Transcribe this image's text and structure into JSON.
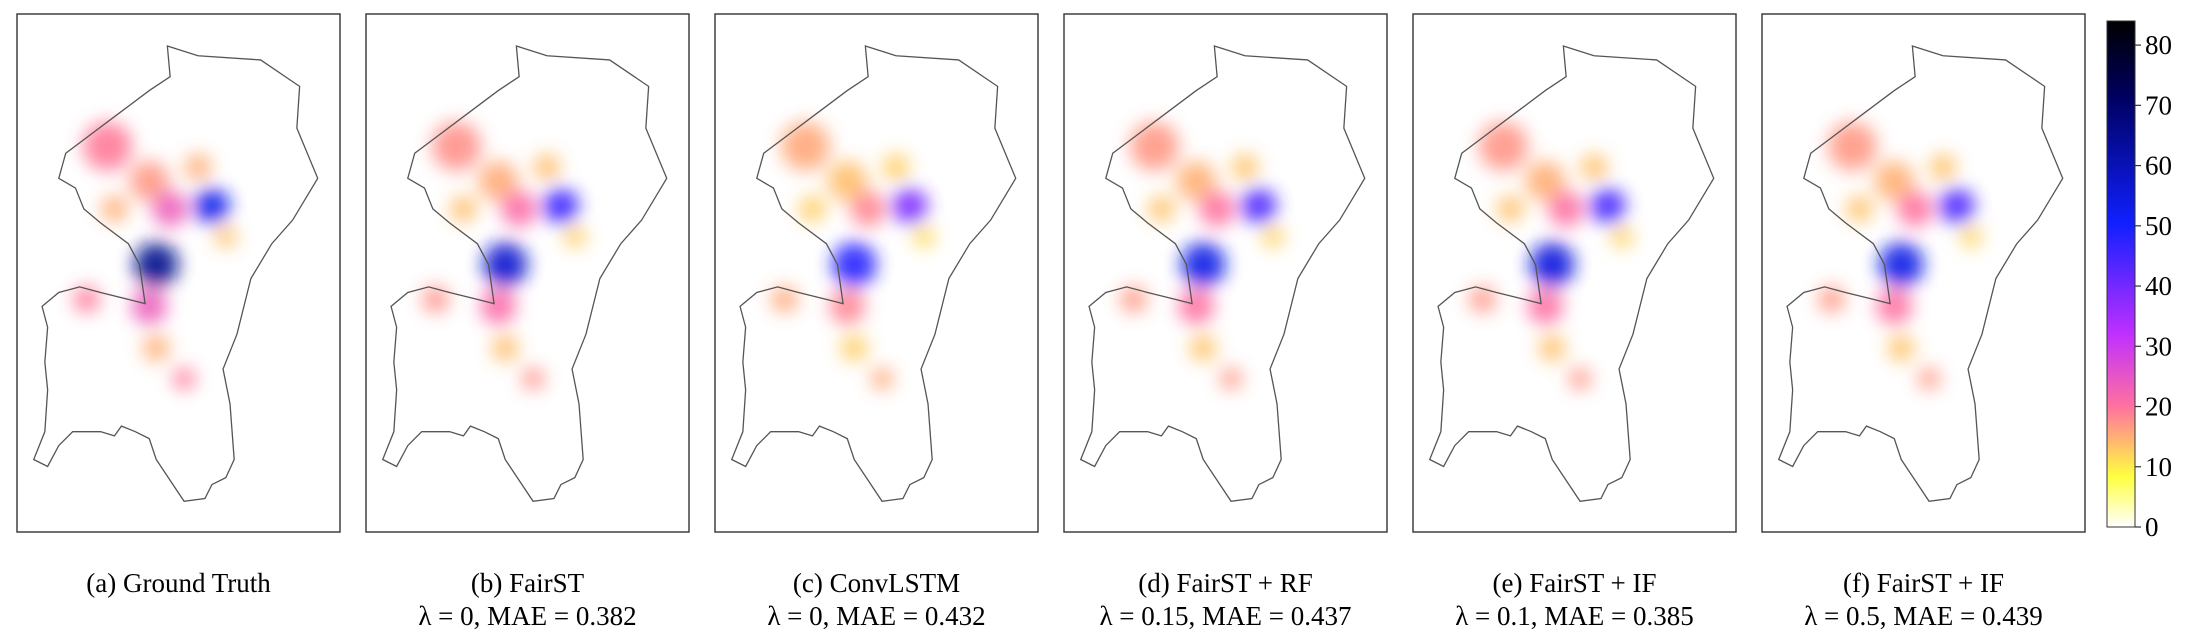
{
  "figure": {
    "panels": [
      {
        "caption": "(a) Ground Truth"
      },
      {
        "caption": "(b) FairST",
        "metrics": "λ = 0, MAE = 0.382"
      },
      {
        "caption": "(c) ConvLSTM",
        "metrics": "λ = 0, MAE = 0.432"
      },
      {
        "caption": "(d) FairST + RF",
        "metrics": "λ = 0.15, MAE = 0.437"
      },
      {
        "caption": "(e) FairST + IF",
        "metrics": "λ = 0.1, MAE = 0.385"
      },
      {
        "caption": "(f) FairST + IF",
        "metrics": "λ = 0.5, MAE = 0.439"
      }
    ],
    "colorbar": {
      "ylim": [
        0,
        84
      ],
      "yticks": [
        0,
        10,
        20,
        30,
        40,
        50,
        60,
        70,
        80
      ]
    }
  }
}
